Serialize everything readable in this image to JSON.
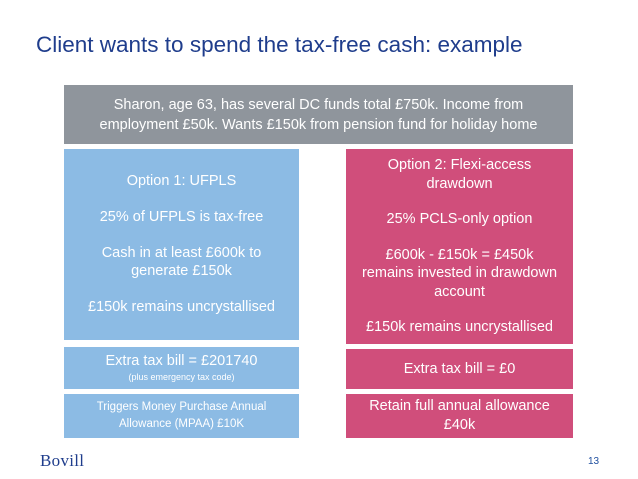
{
  "slide": {
    "title": "Client wants to spend the tax-free cash: example",
    "page_number": "13",
    "logo_text": "Bovill"
  },
  "scenario": {
    "line1": "Sharon, age 63, has several DC funds total £750k. Income from",
    "line2": "employment £50k. Wants £150k from pension fund for holiday home"
  },
  "option1": {
    "heading": "Option 1: UFPLS",
    "point1": "25% of UFPLS is tax-free",
    "point2_line1": "Cash in at least £600k to",
    "point2_line2": "generate £150k",
    "point3": "£150k remains uncrystallised",
    "tax_bill": "Extra tax bill = £201740",
    "tax_note": "(plus emergency tax code)",
    "consequence_line1": "Triggers Money Purchase Annual",
    "consequence_line2": "Allowance (MPAA) £10K"
  },
  "option2": {
    "heading_line1": "Option 2: Flexi-access",
    "heading_line2": "drawdown",
    "point1": "25% PCLS-only option",
    "point2_line1": "£600k  - £150k = £450k",
    "point2_line2": "remains invested in drawdown",
    "point2_line3": "account",
    "point3": "£150k remains uncrystallised",
    "tax_bill": "Extra tax bill = £0",
    "consequence_line1": "Retain full annual allowance",
    "consequence_line2": "£40k"
  },
  "colors": {
    "title": "#1f3d8c",
    "scenario_box": "#8f959c",
    "option1_box": "#8cbbe4",
    "option2_box": "#d04e7b"
  }
}
